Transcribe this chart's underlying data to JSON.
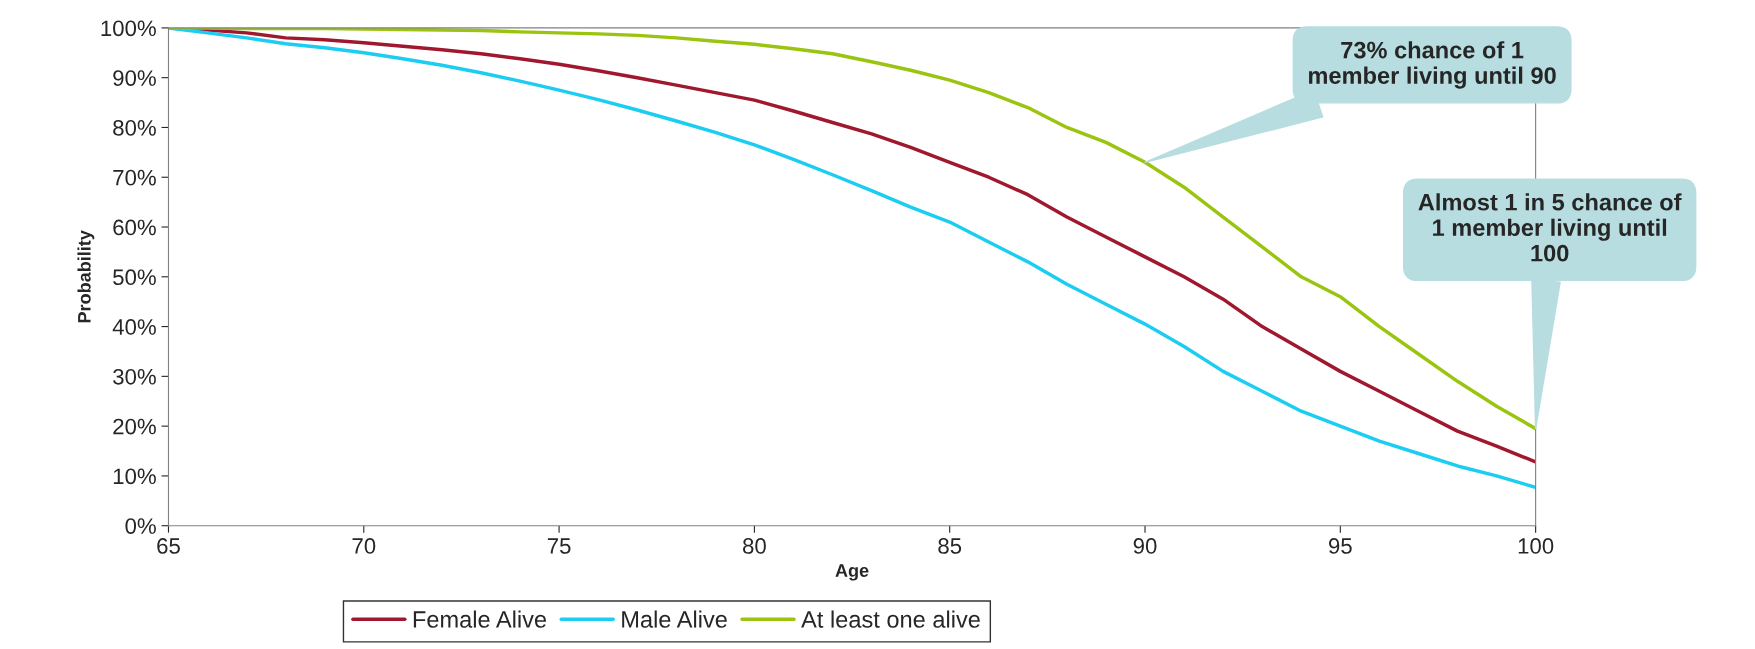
{
  "chart_data": {
    "type": "line",
    "xlabel": "Age",
    "ylabel": "Probability",
    "x": [
      65,
      66,
      67,
      68,
      69,
      70,
      71,
      72,
      73,
      74,
      75,
      76,
      77,
      78,
      79,
      80,
      81,
      82,
      83,
      84,
      85,
      86,
      87,
      88,
      89,
      90,
      91,
      92,
      93,
      94,
      95,
      96,
      97,
      98,
      99,
      100
    ],
    "series": [
      {
        "name": "Female Alive",
        "color": "#a0182e",
        "values": [
          100,
          99.6,
          99,
          98,
          97.6,
          97,
          96.3,
          95.6,
          94.8,
          93.8,
          92.7,
          91.4,
          90,
          88.5,
          87,
          85.5,
          83.3,
          81,
          78.7,
          76,
          73,
          70,
          66.5,
          62,
          58,
          54,
          50,
          45.5,
          40,
          35.5,
          31,
          27,
          23,
          19,
          16,
          12.8
        ]
      },
      {
        "name": "Male Alive",
        "color": "#1ccdf2",
        "values": [
          100,
          99,
          98,
          96.8,
          96,
          95,
          93.8,
          92.5,
          91,
          89.3,
          87.5,
          85.6,
          83.5,
          81.3,
          79,
          76.5,
          73.6,
          70.5,
          67.3,
          64,
          61,
          57,
          53,
          48.5,
          44.5,
          40.5,
          36,
          31,
          27,
          23,
          20,
          17,
          14.5,
          12,
          10,
          7.7
        ]
      },
      {
        "name": "At least one alive",
        "color": "#9ac40f",
        "values": [
          100,
          100,
          99.9,
          99.9,
          99.9,
          99.8,
          99.7,
          99.6,
          99.5,
          99.2,
          99,
          98.8,
          98.5,
          98,
          97.3,
          96.7,
          95.8,
          94.8,
          93.2,
          91.5,
          89.5,
          87,
          84,
          80,
          77,
          73,
          68,
          62,
          56,
          50,
          46,
          40,
          34.5,
          29,
          24,
          19.5
        ]
      }
    ],
    "xlim": [
      65,
      100
    ],
    "xticks": [
      65,
      70,
      75,
      80,
      85,
      90,
      95,
      100
    ],
    "ylim": [
      0,
      100
    ],
    "yticks": [
      {
        "value": 0,
        "label": "0%"
      },
      {
        "value": 10,
        "label": "10%"
      },
      {
        "value": 20,
        "label": "20%"
      },
      {
        "value": 30,
        "label": "30%"
      },
      {
        "value": 40,
        "label": "40%"
      },
      {
        "value": 50,
        "label": "50%"
      },
      {
        "value": 60,
        "label": "60%"
      },
      {
        "value": 70,
        "label": "70%"
      },
      {
        "value": 80,
        "label": "80%"
      },
      {
        "value": 90,
        "label": "90%"
      },
      {
        "value": 100,
        "label": "100%"
      }
    ],
    "annotations": [
      {
        "text": "73% chance of 1\nmember living until 90",
        "x": 90,
        "y": 73
      },
      {
        "text": "Almost 1 in 5 chance of\n1 member living until\n100",
        "x": 100,
        "y": 19.5
      }
    ],
    "legend": "bottom",
    "grid": false,
    "marker": "none",
    "line_style": "solid"
  }
}
